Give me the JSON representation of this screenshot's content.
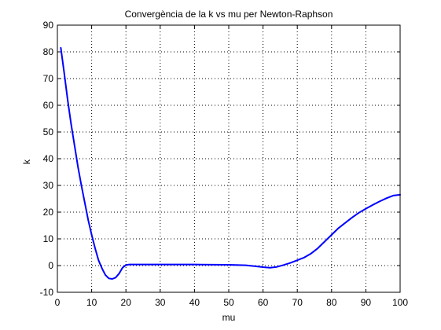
{
  "chart_data": {
    "type": "line",
    "title": "Convergència de la k vs mu per Newton-Raphson",
    "xlabel": "mu",
    "ylabel": "k",
    "xlim": [
      0,
      100
    ],
    "ylim": [
      -10,
      90
    ],
    "xticks": [
      0,
      10,
      20,
      30,
      40,
      50,
      60,
      70,
      80,
      90,
      100
    ],
    "yticks": [
      -10,
      0,
      10,
      20,
      30,
      40,
      50,
      60,
      70,
      80,
      90
    ],
    "grid": true,
    "grid_style": "dotted",
    "line_color": "#0000ff",
    "series": [
      {
        "x": [
          1,
          2,
          3,
          4,
          5,
          6,
          7,
          8,
          9,
          10,
          11,
          12,
          13,
          14,
          15,
          16,
          17,
          18,
          19,
          20,
          21,
          25,
          30,
          40,
          50,
          55,
          58,
          60,
          62,
          64,
          66,
          68,
          70,
          72,
          74,
          76,
          78,
          80,
          82,
          84,
          86,
          88,
          90,
          92,
          94,
          96,
          98,
          100
        ],
        "y": [
          81.5,
          72,
          62,
          53,
          45,
          37,
          30,
          23.5,
          17,
          11.5,
          6.5,
          2,
          -1,
          -3.5,
          -4.8,
          -5,
          -4.5,
          -3,
          -0.8,
          0.2,
          0.4,
          0.4,
          0.4,
          0.4,
          0.3,
          0.1,
          -0.3,
          -0.6,
          -0.8,
          -0.5,
          0.2,
          1,
          2,
          3,
          4.5,
          6.5,
          9,
          11.5,
          14,
          16,
          18,
          19.8,
          21.3,
          22.7,
          24,
          25.2,
          26.2,
          26.5
        ]
      }
    ]
  }
}
